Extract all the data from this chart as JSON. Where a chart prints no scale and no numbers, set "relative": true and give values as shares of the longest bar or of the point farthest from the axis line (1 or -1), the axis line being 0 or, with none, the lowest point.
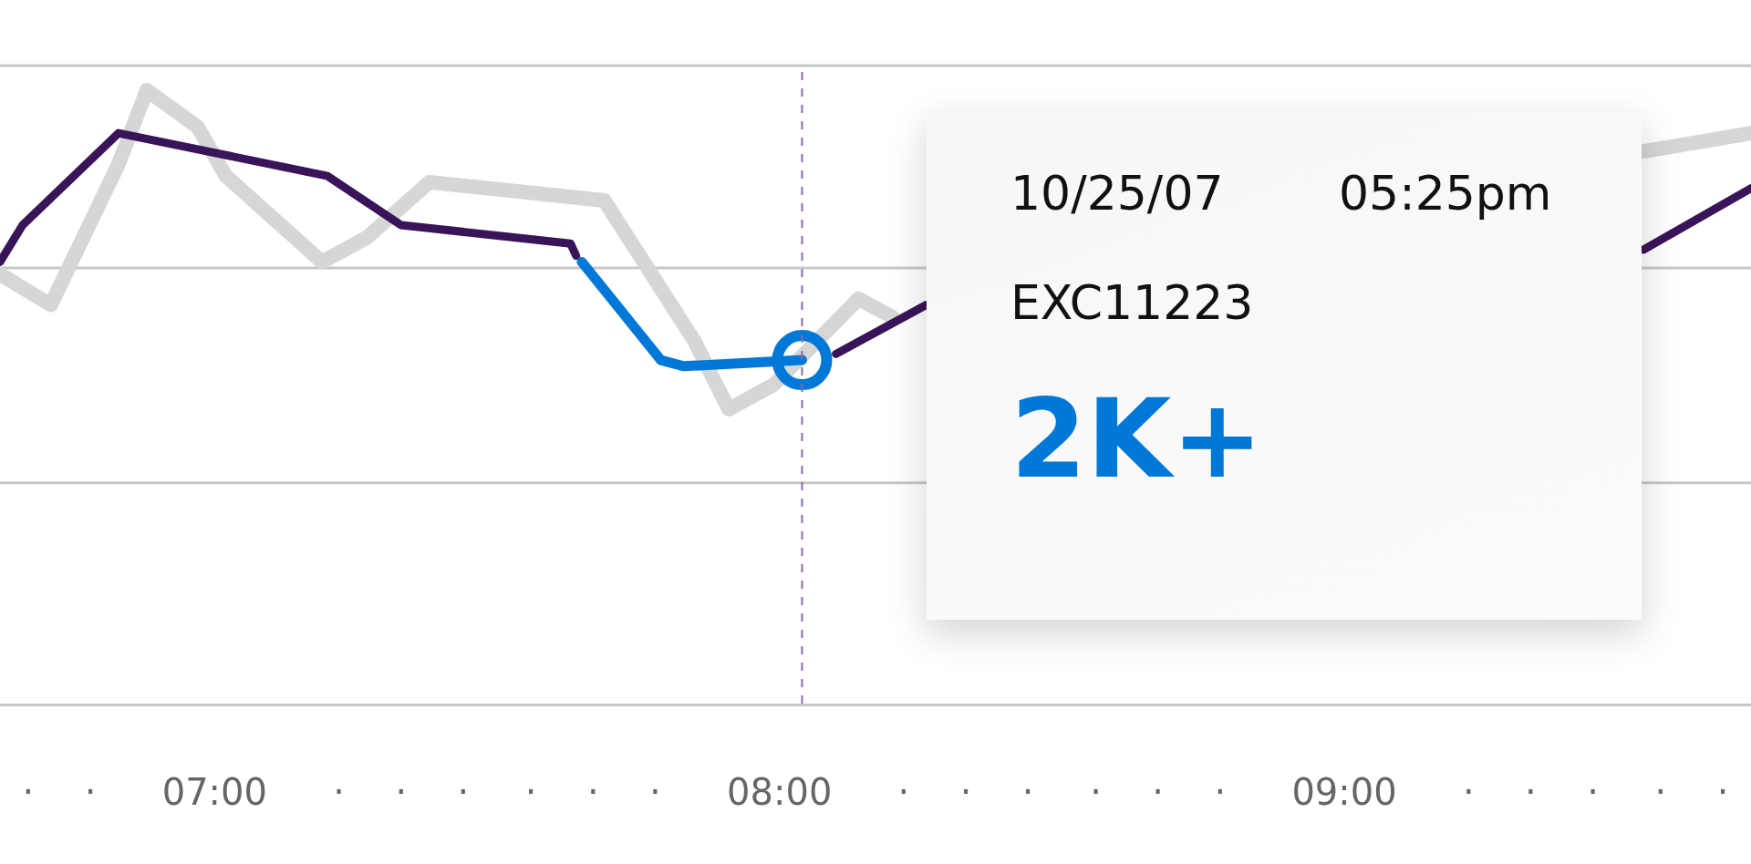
{
  "chart_data": {
    "type": "line",
    "relative": true,
    "legend": false,
    "tick_labels": "x",
    "xlim": [
      6.62,
      9.72
    ],
    "xticks": [
      {
        "value": 6.67,
        "label": "·"
      },
      {
        "value": 6.78,
        "label": "·"
      },
      {
        "value": 7,
        "label": "07:00"
      },
      {
        "value": 7.22,
        "label": "·"
      },
      {
        "value": 7.33,
        "label": "·"
      },
      {
        "value": 7.44,
        "label": "·"
      },
      {
        "value": 7.56,
        "label": "·"
      },
      {
        "value": 7.67,
        "label": "·"
      },
      {
        "value": 7.78,
        "label": "·"
      },
      {
        "value": 8,
        "label": "08:00"
      },
      {
        "value": 8.22,
        "label": "·"
      },
      {
        "value": 8.33,
        "label": "·"
      },
      {
        "value": 8.44,
        "label": "·"
      },
      {
        "value": 8.56,
        "label": "·"
      },
      {
        "value": 8.67,
        "label": "·"
      },
      {
        "value": 8.78,
        "label": "·"
      },
      {
        "value": 9,
        "label": "09:00"
      },
      {
        "value": 9.22,
        "label": "·"
      },
      {
        "value": 9.33,
        "label": "·"
      },
      {
        "value": 9.44,
        "label": "·"
      },
      {
        "value": 9.56,
        "label": "·"
      },
      {
        "value": 9.67,
        "label": "·"
      }
    ],
    "series": [
      {
        "color": "#d6d6d6",
        "x": [
          6.62,
          6.71,
          6.83,
          6.88,
          6.97,
          7.02,
          7.19,
          7.27,
          7.38,
          7.69,
          7.85,
          7.91,
          7.99,
          8.14,
          8.2,
          8.9,
          9.53,
          9.72
        ],
        "values": [
          0.7,
          0.65,
          0.88,
          1,
          0.94,
          0.86,
          0.72,
          0.76,
          0.85,
          0.82,
          0.59,
          0.48,
          0.52,
          0.66,
          0.63,
          null,
          0.9,
          0.93
        ]
      },
      {
        "color": "#3a1458",
        "x": [
          6.62,
          6.66,
          6.83,
          7.2,
          7.33,
          7.63,
          7.64,
          7.8,
          8.1,
          8.26,
          8.9,
          9.53,
          9.72
        ],
        "values": [
          0.72,
          0.78,
          0.93,
          0.86,
          0.78,
          0.75,
          0.73,
          null,
          0.57,
          0.65,
          null,
          0.74,
          0.84
        ]
      },
      {
        "color": "#0078d7",
        "x": [
          7.65,
          7.79,
          7.83,
          8.04
        ],
        "values": [
          0.72,
          0.56,
          0.55,
          0.56
        ]
      },
      {
        "type": "scatter",
        "color": "#0078d7",
        "marker": "circle",
        "x": [
          8.04
        ],
        "values": [
          0.56
        ]
      }
    ],
    "ref_lines": [
      {
        "axis": "x",
        "value": 8.04,
        "color": "#8a6aa8",
        "line_style": "dashed"
      },
      {
        "axis": "y",
        "value": 0.36,
        "color": "#c8c8c8"
      },
      {
        "axis": "y",
        "value": 0.71,
        "color": "#c8c8c8"
      },
      {
        "axis": "y",
        "value": 1.04,
        "color": "#c8c8c8"
      }
    ],
    "annotations": [
      "10/25/07",
      "05:25pm",
      "EXC11223",
      "2K+"
    ]
  }
}
